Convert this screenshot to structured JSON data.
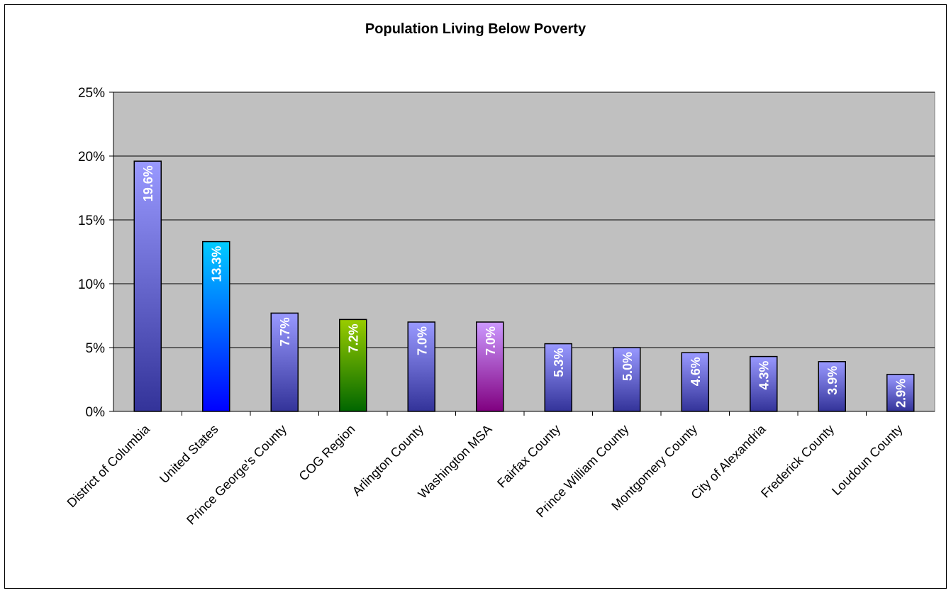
{
  "chart_data": {
    "type": "bar",
    "title": "Population Living Below Poverty",
    "categories": [
      "District of Columbia",
      "United States",
      "Prince George's County",
      "COG Region",
      "Arlington County",
      "Washington MSA",
      "Fairfax County",
      "Prince William County",
      "Montgomery County",
      "City of Alexandria",
      "Frederick County",
      "Loudoun County"
    ],
    "values": [
      19.6,
      13.3,
      7.7,
      7.2,
      7.0,
      7.0,
      5.3,
      5.0,
      4.6,
      4.3,
      3.9,
      2.9
    ],
    "data_labels": [
      "19.6%",
      "13.3%",
      "7.7%",
      "7.2%",
      "7.0%",
      "7.0%",
      "5.3%",
      "5.0%",
      "4.6%",
      "4.3%",
      "3.9%",
      "2.9%"
    ],
    "bar_colors": [
      [
        "#9999ff",
        "#333399"
      ],
      [
        "#00ccff",
        "#0000ff"
      ],
      [
        "#9999ff",
        "#333399"
      ],
      [
        "#99cc00",
        "#006600"
      ],
      [
        "#9999ff",
        "#333399"
      ],
      [
        "#cc99ff",
        "#800080"
      ],
      [
        "#9999ff",
        "#333399"
      ],
      [
        "#9999ff",
        "#333399"
      ],
      [
        "#9999ff",
        "#333399"
      ],
      [
        "#9999ff",
        "#333399"
      ],
      [
        "#9999ff",
        "#333399"
      ],
      [
        "#9999ff",
        "#333399"
      ]
    ],
    "yticks": [
      "0%",
      "5%",
      "10%",
      "15%",
      "20%",
      "25%"
    ],
    "ylim": [
      0,
      25
    ],
    "plot_background": "#c0c0c0",
    "grid": true,
    "legend": "none"
  }
}
